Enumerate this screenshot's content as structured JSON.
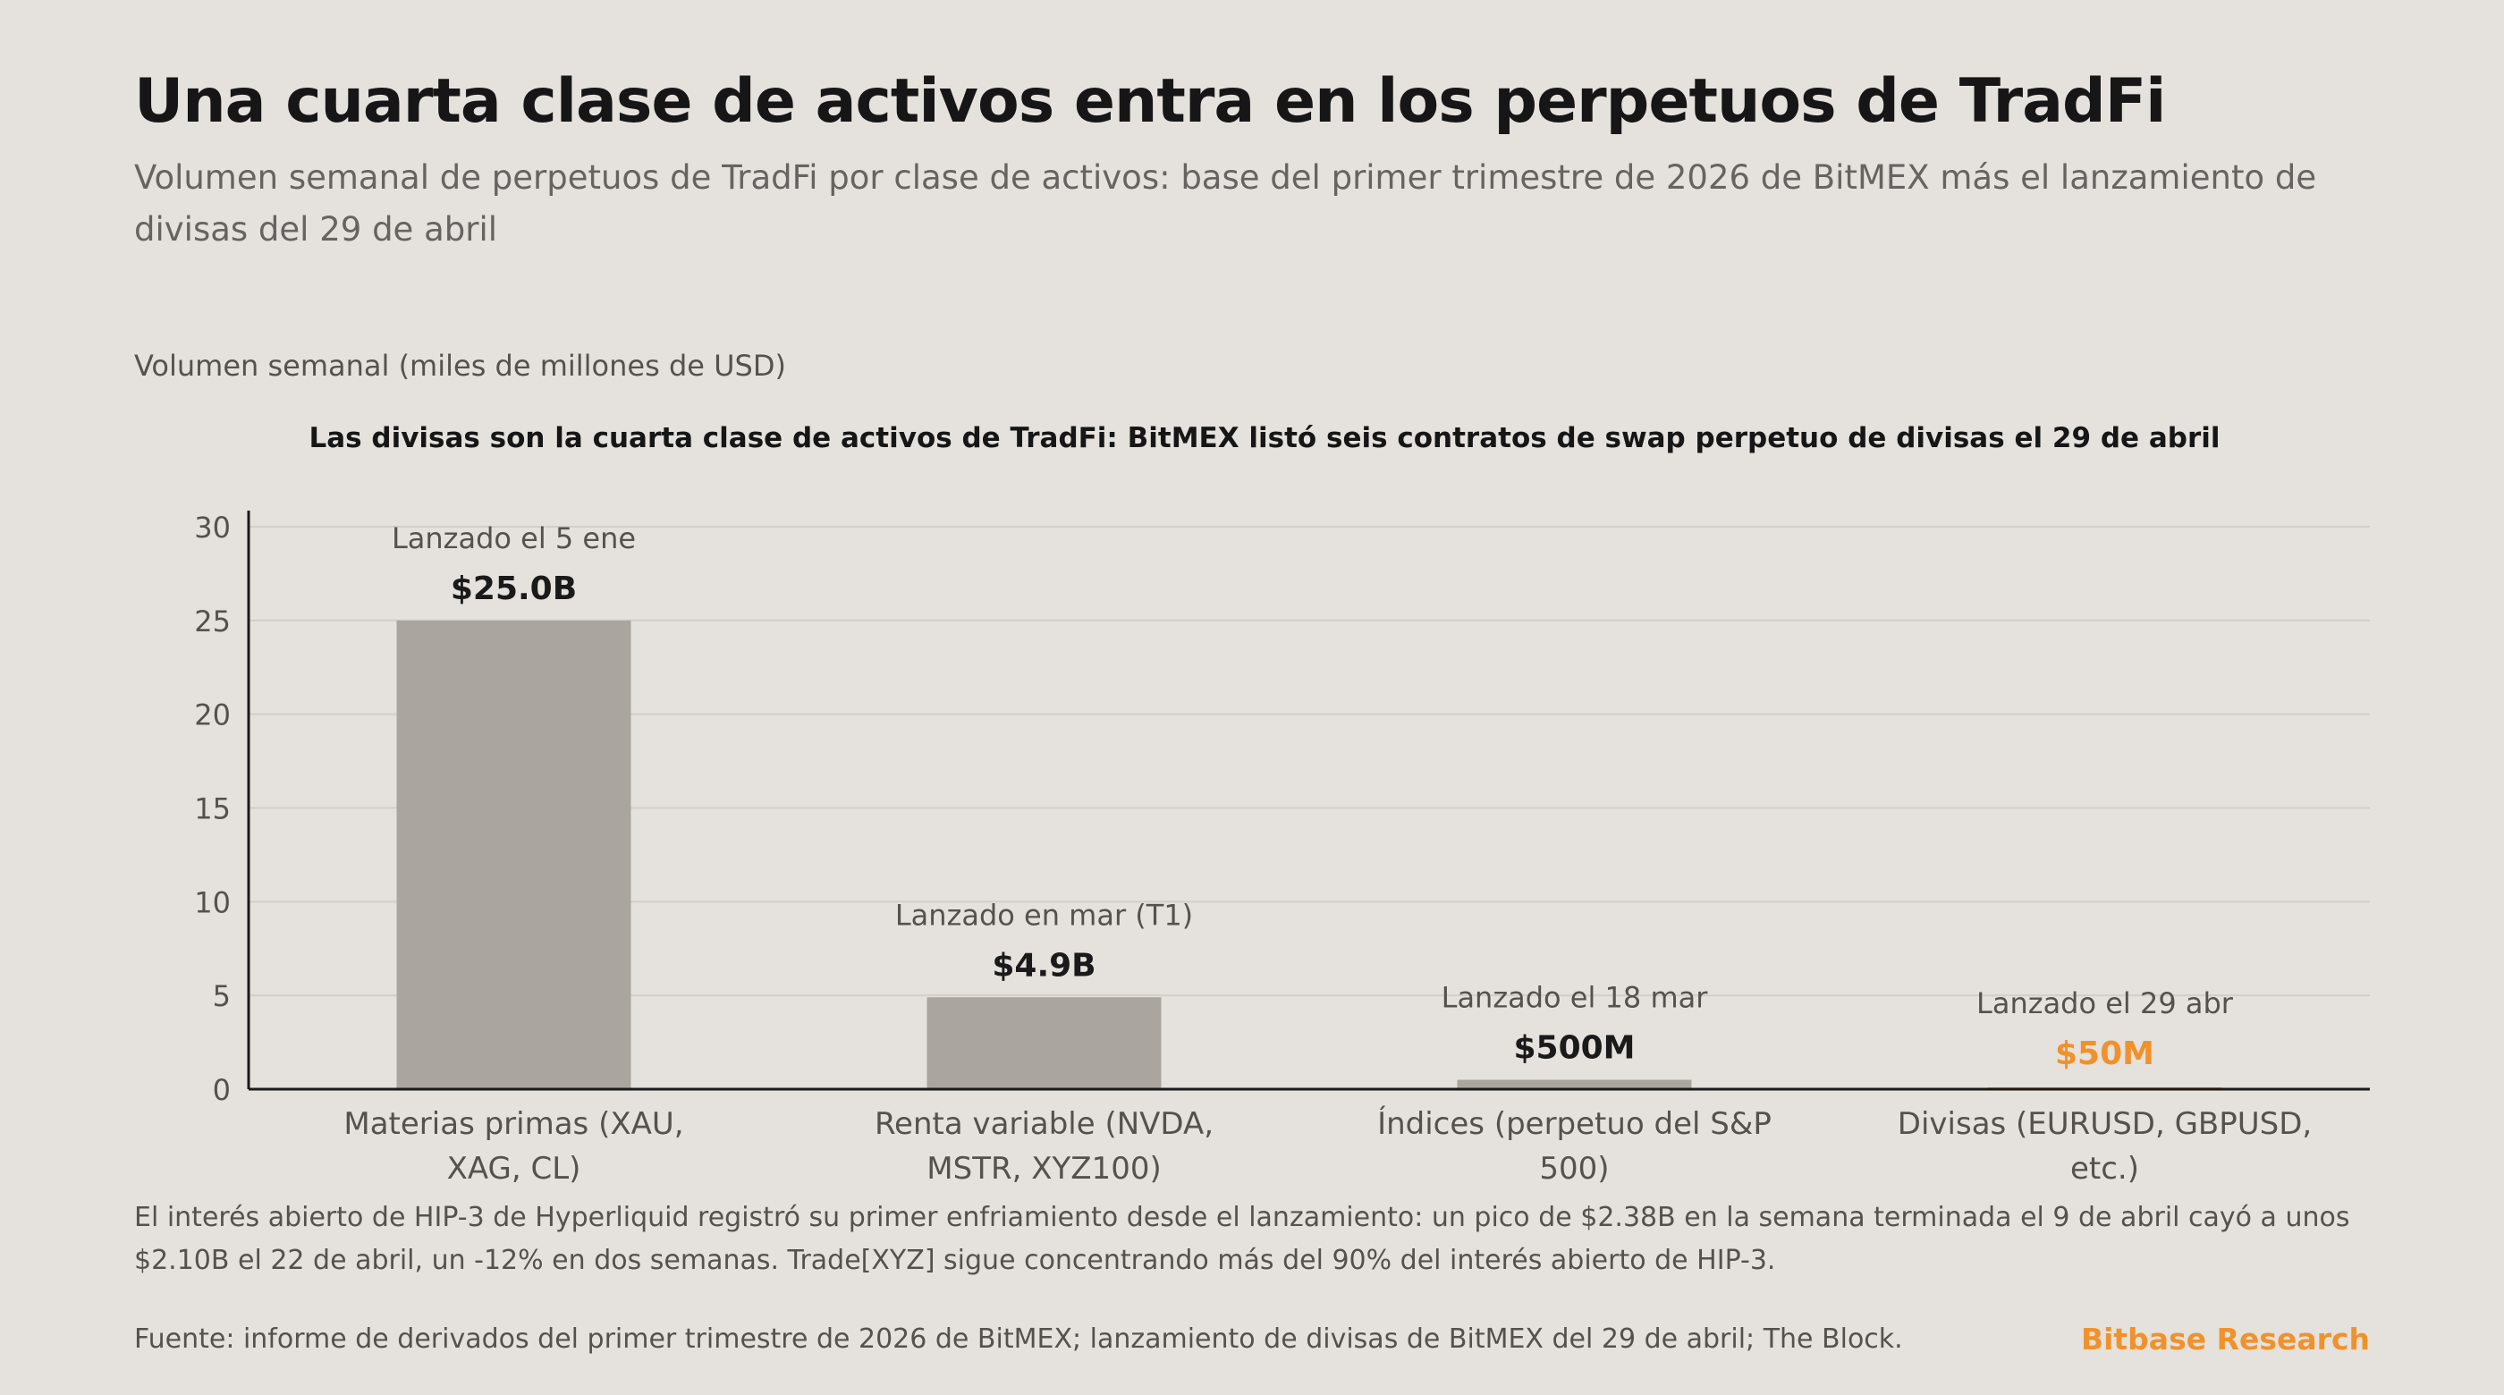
{
  "header": {
    "title": "Una cuarta clase de activos entra en los perpetuos de TradFi",
    "subtitle": "Volumen semanal de perpetuos de TradFi por clase de activos: base del primer trimestre de 2026 de BitMEX más el lanzamiento de divisas del 29 de abril"
  },
  "chart_data": {
    "type": "bar",
    "title": "Las divisas son la cuarta clase de activos de TradFi: BitMEX listó seis contratos de swap perpetuo de divisas el 29 de abril",
    "ylabel": "Volumen semanal (miles de millones de USD)",
    "xlabel": "",
    "ylim": [
      0,
      30
    ],
    "yticks": [
      0,
      5,
      10,
      15,
      20,
      25,
      30
    ],
    "grid": true,
    "categories": [
      [
        "Materias primas (XAU,",
        "XAG, CL)"
      ],
      [
        "Renta variable (NVDA,",
        "MSTR, XYZ100)"
      ],
      [
        "Índices (perpetuo del S&P",
        "500)"
      ],
      [
        "Divisas (EURUSD, GBPUSD,",
        "etc.)"
      ]
    ],
    "values": [
      25.0,
      4.9,
      0.5,
      0.05
    ],
    "value_labels": [
      "$25.0B",
      "$4.9B",
      "$500M",
      "$50M"
    ],
    "annotations": [
      "Lanzado el 5 ene",
      "Lanzado en mar (T1)",
      "Lanzado el 18 mar",
      "Lanzado el 29 abr"
    ],
    "highlight_index": 3,
    "colors": {
      "bar": "#aaa69f",
      "highlight": "#f0922b",
      "axis": "#1a1a1a",
      "grid": "#d3cec8",
      "value_text": "#1a1a1a",
      "annotation_text": "#55524e",
      "tick_text": "#55524e"
    }
  },
  "footnote": "El interés abierto de HIP-3 de Hyperliquid registró su primer enfriamiento desde el lanzamiento: un pico de $2.38B en la semana terminada el 9 de abril cayó a unos $2.10B el 22 de abril, un -12% en dos semanas. Trade[XYZ] sigue concentrando más del 90% del interés abierto de HIP-3.",
  "source": "Fuente: informe de derivados del primer trimestre de 2026 de BitMEX; lanzamiento de divisas de BitMEX del 29 de abril; The Block.",
  "brand": "Bitbase Research"
}
